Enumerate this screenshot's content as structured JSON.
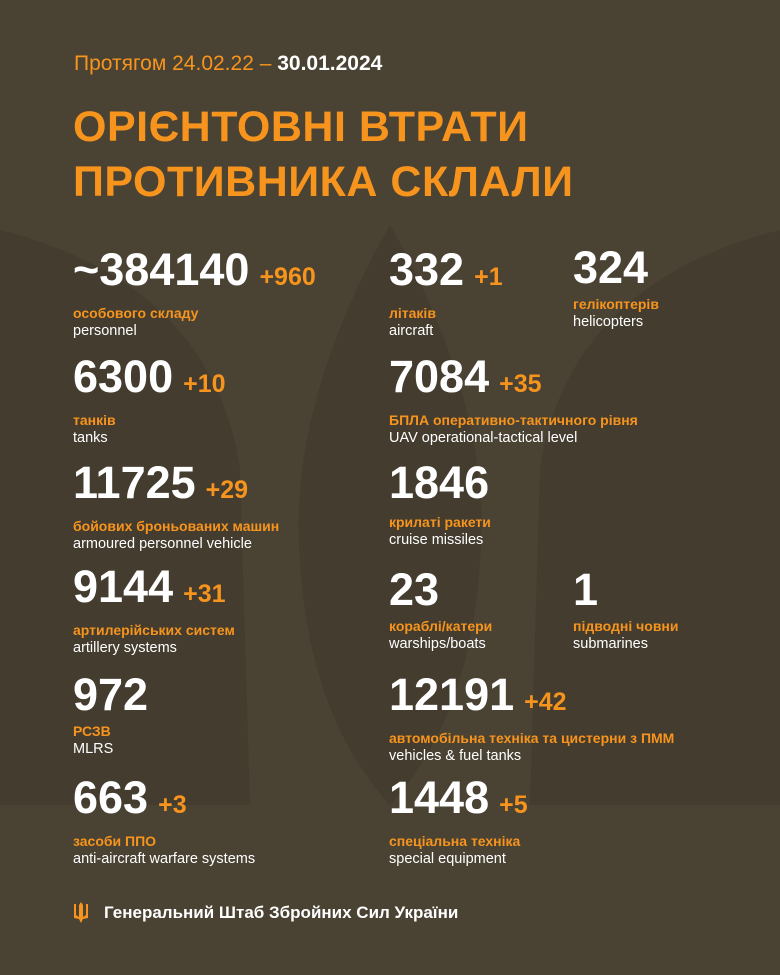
{
  "header": {
    "period_prefix": "Протягом 24.02.22 –",
    "period_end": "30.01.2024",
    "title_line1": "ОРІЄНТОВНІ ВТРАТИ",
    "title_line2": "ПРОТИВНИКА СКЛАЛИ"
  },
  "colors": {
    "background": "#4a4334",
    "accent": "#f7941d",
    "text": "#ffffff"
  },
  "stats": {
    "personnel": {
      "value": "~384140",
      "delta": "+960",
      "ua": "особового складу",
      "en": "personnel"
    },
    "aircraft": {
      "value": "332",
      "delta": "+1",
      "ua": "літаків",
      "en": "aircraft"
    },
    "helicopters": {
      "value": "324",
      "ua": "гелікоптерів",
      "en": "helicopters"
    },
    "tanks": {
      "value": "6300",
      "delta": "+10",
      "ua": "танків",
      "en": "tanks"
    },
    "uav": {
      "value": "7084",
      "delta": "+35",
      "ua": "БПЛА оперативно-тактичного рівня",
      "en": "UAV operational-tactical level"
    },
    "apv": {
      "value": "11725",
      "delta": "+29",
      "ua": "бойових броньованих машин",
      "en": "armoured personnel vehicle"
    },
    "cruise": {
      "value": "1846",
      "ua": "крилаті ракети",
      "en": "cruise missiles"
    },
    "artillery": {
      "value": "9144",
      "delta": "+31",
      "ua": "артилерійських систем",
      "en": "artillery systems"
    },
    "warships": {
      "value": "23",
      "ua": "кораблі/катери",
      "en": "warships/boats"
    },
    "submarines": {
      "value": "1",
      "ua": "підводні човни",
      "en": "submarines"
    },
    "mlrs": {
      "value": "972",
      "ua": "РСЗВ",
      "en": "MLRS"
    },
    "vehicles": {
      "value": "12191",
      "delta": "+42",
      "ua": "автомобільна техніка та цистерни з ПММ",
      "en": "vehicles & fuel tanks"
    },
    "aa": {
      "value": "663",
      "delta": "+3",
      "ua": "засоби ППО",
      "en": "anti-aircraft warfare systems"
    },
    "special": {
      "value": "1448",
      "delta": "+5",
      "ua": "спеціальна техніка",
      "en": "special equipment"
    }
  },
  "footer": {
    "logo_icon": "trident-icon",
    "org": "Генеральний Штаб Збройних Сил України"
  }
}
